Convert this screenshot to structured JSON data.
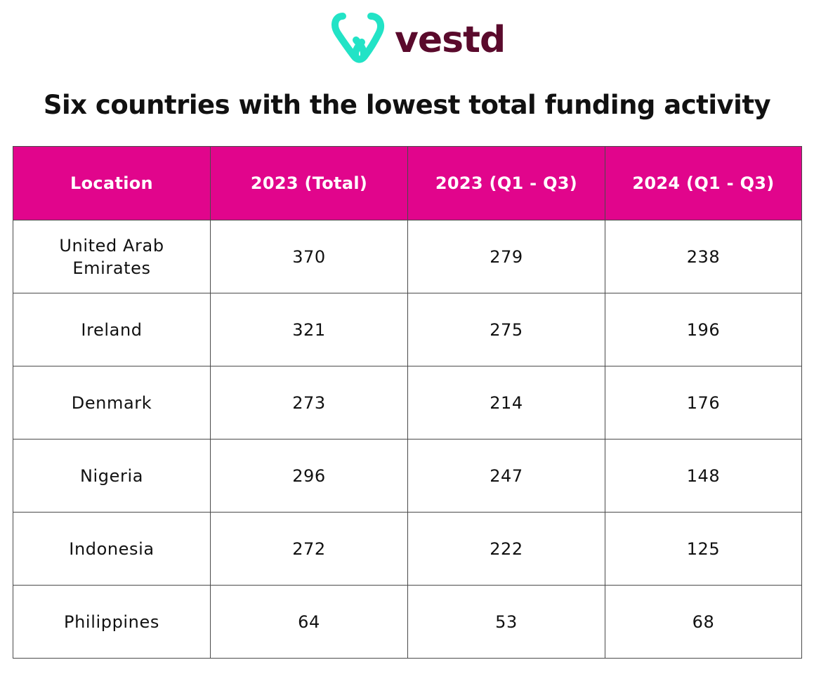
{
  "brand": {
    "name": "vestd",
    "logo_icon": "vestd-v-mark-icon",
    "logo_color": "#22e3c6",
    "wordmark_color": "#5a0a2c"
  },
  "header_color": "#e1058c",
  "chart_data": {
    "type": "table",
    "title": "Six countries with the lowest total funding activity",
    "columns": [
      "Location",
      "2023 (Total)",
      "2023 (Q1 - Q3)",
      "2024 (Q1 - Q3)"
    ],
    "rows": [
      [
        "United Arab Emirates",
        "370",
        "279",
        "238"
      ],
      [
        "Ireland",
        "321",
        "275",
        "196"
      ],
      [
        "Denmark",
        "273",
        "214",
        "176"
      ],
      [
        "Nigeria",
        "296",
        "247",
        "148"
      ],
      [
        "Indonesia",
        "272",
        "222",
        "125"
      ],
      [
        "Philippines",
        "64",
        "53",
        "68"
      ]
    ]
  }
}
